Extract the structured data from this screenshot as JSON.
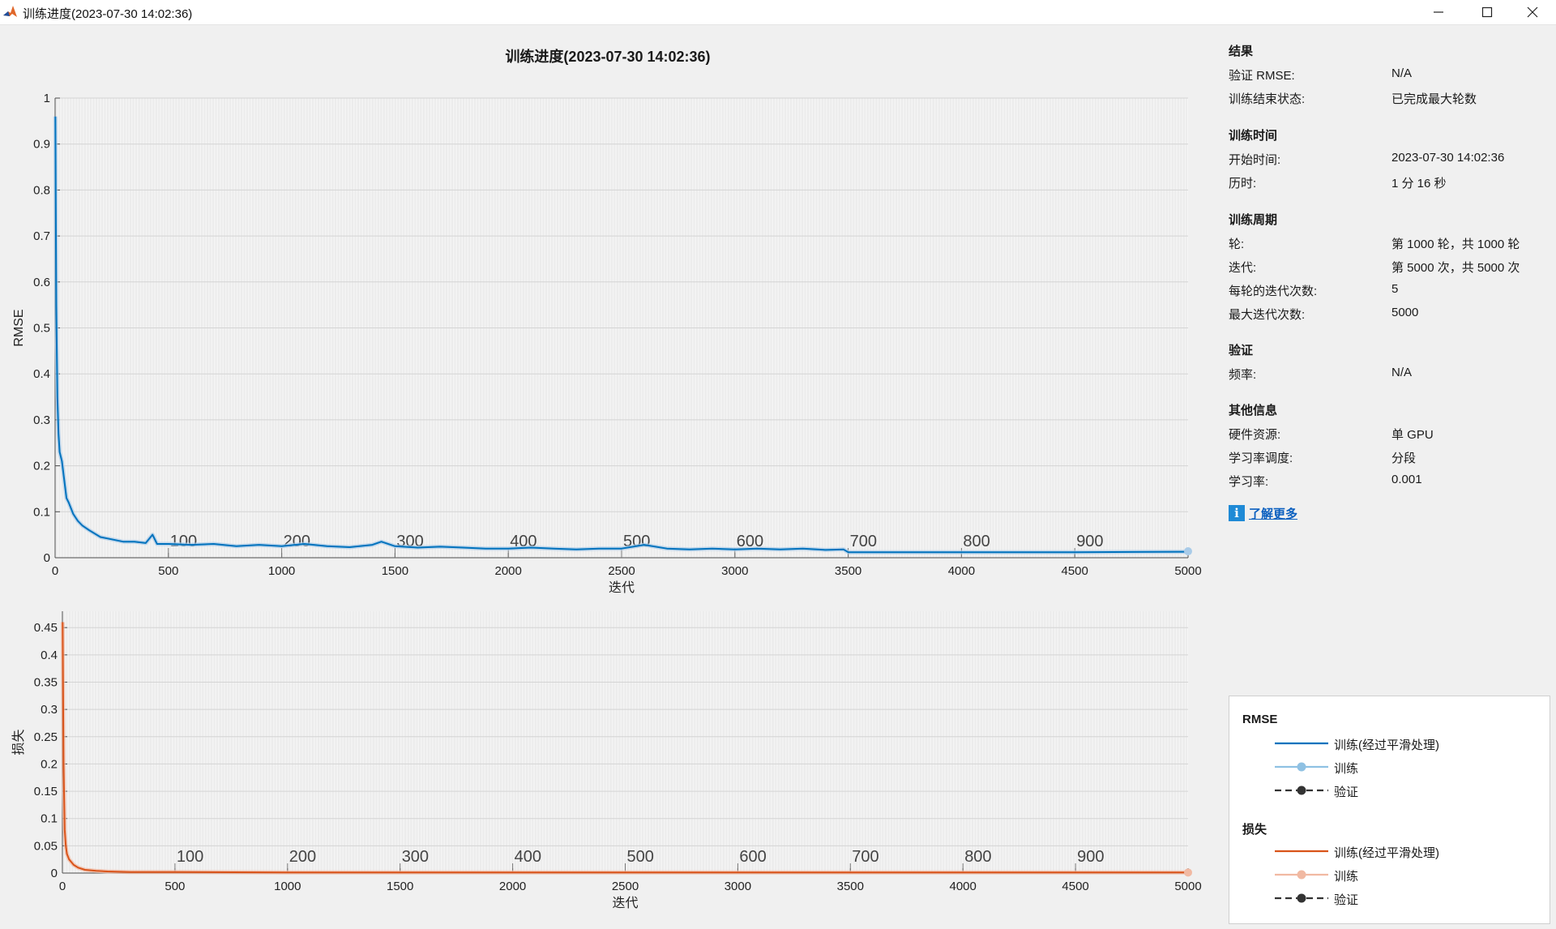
{
  "window": {
    "title": "训练进度(2023-07-30 14:02:36)",
    "icon": "matlab-icon",
    "controls": [
      "minimize-icon",
      "maximize-icon",
      "close-icon"
    ]
  },
  "plot_title": "训练进度(2023-07-30 14:02:36)",
  "info": {
    "sections": [
      {
        "title": "结果",
        "rows": [
          {
            "label": "验证 RMSE:",
            "value": "N/A"
          },
          {
            "label": "训练结束状态:",
            "value": "已完成最大轮数"
          }
        ]
      },
      {
        "title": "训练时间",
        "rows": [
          {
            "label": "开始时间:",
            "value": "2023-07-30 14:02:36"
          },
          {
            "label": "历时:",
            "value": "1 分 16 秒"
          }
        ]
      },
      {
        "title": "训练周期",
        "rows": [
          {
            "label": "轮:",
            "value": "第 1000 轮，共 1000 轮"
          },
          {
            "label": "迭代:",
            "value": "第 5000 次，共 5000 次"
          },
          {
            "label": "每轮的迭代次数:",
            "value": "5"
          },
          {
            "label": "最大迭代次数:",
            "value": "5000"
          }
        ]
      },
      {
        "title": "验证",
        "rows": [
          {
            "label": "频率:",
            "value": "N/A"
          }
        ]
      },
      {
        "title": "其他信息",
        "rows": [
          {
            "label": "硬件资源:",
            "value": "单 GPU"
          },
          {
            "label": "学习率调度:",
            "value": "分段"
          },
          {
            "label": "学习率:",
            "value": "0.001"
          }
        ]
      }
    ],
    "learn_more": "了解更多"
  },
  "legend": {
    "groups": [
      {
        "title": "RMSE",
        "items": [
          {
            "label": "训练(经过平滑处理)",
            "style": "line",
            "color": "#0072bd"
          },
          {
            "label": "训练",
            "style": "line-marker",
            "color": "#8fc1e3"
          },
          {
            "label": "验证",
            "style": "dash-marker",
            "color": "#333333"
          }
        ]
      },
      {
        "title": "损失",
        "items": [
          {
            "label": "训练(经过平滑处理)",
            "style": "line",
            "color": "#d95319"
          },
          {
            "label": "训练",
            "style": "line-marker",
            "color": "#f1b9a2"
          },
          {
            "label": "验证",
            "style": "dash-marker",
            "color": "#333333"
          }
        ]
      }
    ]
  },
  "chart_data": [
    {
      "type": "line",
      "xlabel": "迭代",
      "ylabel": "RMSE",
      "xlim": [
        0,
        5000
      ],
      "ylim": [
        0,
        1
      ],
      "xticks": [
        0,
        500,
        1000,
        1500,
        2000,
        2500,
        3000,
        3500,
        4000,
        4500,
        5000
      ],
      "yticks": [
        0,
        0.1,
        0.2,
        0.3,
        0.4,
        0.5,
        0.6,
        0.7,
        0.8,
        0.9,
        1
      ],
      "ytick_labels": [
        "0",
        "0.1",
        "0.2",
        "0.3",
        "0.4",
        "0.5",
        "0.6",
        "0.7",
        "0.8",
        "0.9",
        "1"
      ],
      "grid": true,
      "color_smoothed": "#0072bd",
      "color_raw": "#a9cbe8",
      "epoch_marks": [
        100,
        200,
        300,
        400,
        500,
        600,
        700,
        800,
        900
      ],
      "iterations_per_epoch": 5,
      "series": [
        {
          "name": "训练(经过平滑处理)",
          "x": [
            1,
            5,
            10,
            15,
            20,
            30,
            40,
            50,
            60,
            80,
            100,
            120,
            150,
            200,
            250,
            300,
            350,
            400,
            430,
            450,
            500,
            600,
            700,
            800,
            900,
            1000,
            1100,
            1200,
            1300,
            1400,
            1440,
            1500,
            1600,
            1700,
            1800,
            1900,
            2000,
            2100,
            2200,
            2300,
            2400,
            2500,
            2600,
            2700,
            2800,
            2900,
            3000,
            3100,
            3200,
            3300,
            3400,
            3480,
            3500,
            3600,
            4000,
            4500,
            5000
          ],
          "y": [
            0.96,
            0.55,
            0.35,
            0.27,
            0.23,
            0.21,
            0.17,
            0.13,
            0.12,
            0.095,
            0.08,
            0.07,
            0.06,
            0.045,
            0.04,
            0.035,
            0.035,
            0.032,
            0.05,
            0.03,
            0.03,
            0.028,
            0.03,
            0.025,
            0.028,
            0.025,
            0.03,
            0.025,
            0.023,
            0.028,
            0.035,
            0.025,
            0.022,
            0.024,
            0.022,
            0.02,
            0.02,
            0.022,
            0.02,
            0.018,
            0.02,
            0.02,
            0.028,
            0.02,
            0.018,
            0.02,
            0.018,
            0.02,
            0.018,
            0.02,
            0.017,
            0.018,
            0.012,
            0.012,
            0.012,
            0.012,
            0.013
          ]
        },
        {
          "name": "训练",
          "x": [
            5000
          ],
          "y": [
            0.014
          ]
        }
      ]
    },
    {
      "type": "line",
      "xlabel": "迭代",
      "ylabel": "损失",
      "xlim": [
        0,
        5000
      ],
      "ylim": [
        0,
        0.48
      ],
      "xticks": [
        0,
        500,
        1000,
        1500,
        2000,
        2500,
        3000,
        3500,
        4000,
        4500,
        5000
      ],
      "yticks": [
        0,
        0.05,
        0.1,
        0.15,
        0.2,
        0.25,
        0.3,
        0.35,
        0.4,
        0.45
      ],
      "ytick_labels": [
        "0",
        "0.05",
        "0.1",
        "0.15",
        "0.2",
        "0.25",
        "0.3",
        "0.35",
        "0.4",
        "0.45"
      ],
      "grid": true,
      "color_smoothed": "#d95319",
      "color_raw": "#f1b9a2",
      "epoch_marks": [
        100,
        200,
        300,
        400,
        500,
        600,
        700,
        800,
        900
      ],
      "iterations_per_epoch": 5,
      "series": [
        {
          "name": "训练(经过平滑处理)",
          "x": [
            1,
            5,
            10,
            15,
            20,
            30,
            40,
            50,
            70,
            100,
            150,
            200,
            300,
            500,
            1000,
            2000,
            3000,
            4000,
            5000
          ],
          "y": [
            0.46,
            0.2,
            0.08,
            0.05,
            0.035,
            0.025,
            0.02,
            0.015,
            0.01,
            0.006,
            0.004,
            0.003,
            0.002,
            0.002,
            0.001,
            0.001,
            0.001,
            0.001,
            0.001
          ]
        },
        {
          "name": "训练",
          "x": [
            5000
          ],
          "y": [
            0.001
          ]
        }
      ]
    }
  ]
}
